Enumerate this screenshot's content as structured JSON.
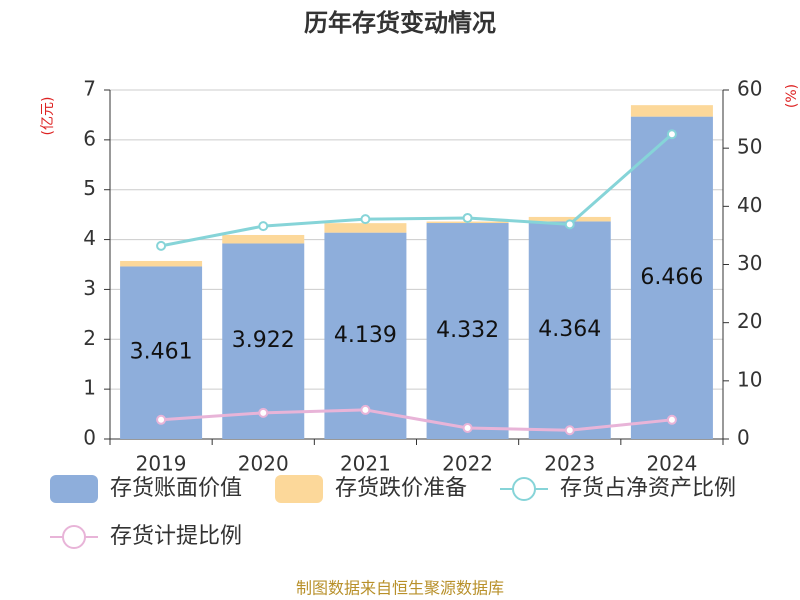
{
  "chart_data": {
    "type": "bar",
    "title": "历年存货变动情况",
    "y_label": "(亿元)",
    "y2_label": "(%)",
    "categories": [
      "2019",
      "2020",
      "2021",
      "2022",
      "2023",
      "2024"
    ],
    "series": [
      {
        "name": "存货账面价值",
        "color": "#8eaedb",
        "values": [
          3.461,
          3.922,
          4.139,
          4.332,
          4.364,
          6.466
        ]
      },
      {
        "name": "存货跌价准备",
        "color": "#fcd89a",
        "values": [
          0.11,
          0.17,
          0.19,
          0.03,
          0.09,
          0.23
        ]
      },
      {
        "name": "存货占净资产比例",
        "color": "#86d4d8",
        "axis": "y2",
        "values": [
          33.2,
          36.6,
          37.8,
          38.0,
          36.9,
          52.4
        ]
      },
      {
        "name": "存货计提比例",
        "color": "#e8b4d8",
        "axis": "y2",
        "values": [
          3.3,
          4.5,
          5.0,
          1.9,
          1.5,
          3.3
        ]
      }
    ],
    "ylim": [
      0,
      7
    ],
    "yticks": [
      0,
      1,
      2,
      3,
      4,
      5,
      6,
      7
    ],
    "y2lim": [
      0,
      60
    ],
    "y2ticks": [
      0,
      10,
      20,
      30,
      40,
      50,
      60
    ],
    "grid": true,
    "legend": "bottom",
    "source": "制图数据来自恒生聚源数据库"
  }
}
